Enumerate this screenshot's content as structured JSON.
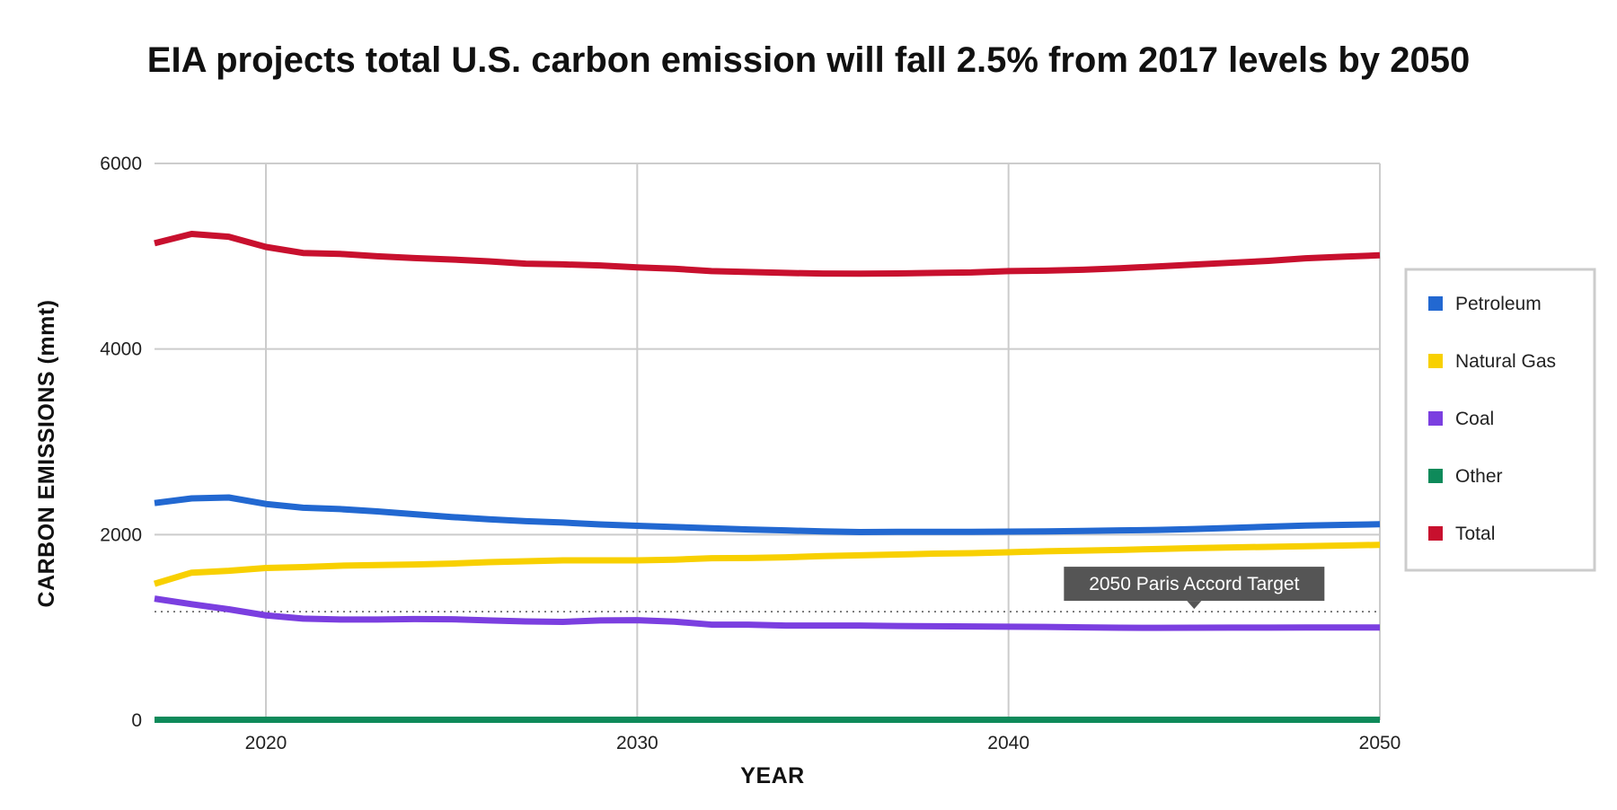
{
  "chart_data": {
    "type": "line",
    "title": "EIA projects total U.S. carbon emission will fall 2.5% from 2017 levels by 2050",
    "xlabel": "YEAR",
    "ylabel": "CARBON EMISSIONS (mmt)",
    "xlim": [
      2017,
      2050
    ],
    "ylim": [
      0,
      6000
    ],
    "x_ticks": [
      "2020",
      "2030",
      "2040",
      "2050"
    ],
    "y_ticks": [
      "0",
      "2000",
      "4000",
      "6000"
    ],
    "grid": true,
    "legend_position": "right",
    "x": [
      2017,
      2018,
      2019,
      2020,
      2021,
      2022,
      2023,
      2024,
      2025,
      2026,
      2027,
      2028,
      2029,
      2030,
      2031,
      2032,
      2033,
      2034,
      2035,
      2036,
      2037,
      2038,
      2039,
      2040,
      2041,
      2042,
      2043,
      2044,
      2045,
      2046,
      2047,
      2048,
      2049,
      2050
    ],
    "series": [
      {
        "name": "Petroleum",
        "color": "#2268d1",
        "values": [
          2340,
          2390,
          2400,
          2330,
          2290,
          2275,
          2250,
          2220,
          2190,
          2165,
          2145,
          2130,
          2110,
          2095,
          2082,
          2068,
          2055,
          2045,
          2035,
          2028,
          2030,
          2030,
          2030,
          2032,
          2035,
          2040,
          2045,
          2050,
          2060,
          2072,
          2085,
          2098,
          2105,
          2112
        ]
      },
      {
        "name": "Natural Gas",
        "color": "#f8d000",
        "values": [
          1470,
          1590,
          1610,
          1640,
          1650,
          1665,
          1672,
          1678,
          1688,
          1703,
          1713,
          1722,
          1722,
          1722,
          1730,
          1745,
          1748,
          1755,
          1768,
          1777,
          1785,
          1795,
          1800,
          1810,
          1820,
          1828,
          1835,
          1845,
          1855,
          1862,
          1868,
          1875,
          1882,
          1890
        ]
      },
      {
        "name": "Coal",
        "color": "#7b3fe0",
        "values": [
          1310,
          1250,
          1195,
          1130,
          1095,
          1085,
          1085,
          1090,
          1088,
          1075,
          1065,
          1060,
          1075,
          1078,
          1062,
          1030,
          1030,
          1020,
          1020,
          1020,
          1015,
          1013,
          1010,
          1008,
          1005,
          1000,
          997,
          995,
          997,
          998,
          998,
          999,
          999,
          999
        ]
      },
      {
        "name": "Other",
        "color": "#0e8a5a",
        "values": [
          5,
          5,
          5,
          5,
          5,
          5,
          5,
          5,
          5,
          5,
          5,
          5,
          5,
          5,
          5,
          5,
          5,
          5,
          5,
          5,
          5,
          5,
          5,
          5,
          5,
          5,
          5,
          5,
          5,
          5,
          5,
          5,
          5,
          5
        ]
      },
      {
        "name": "Total",
        "color": "#c8102e",
        "values": [
          5140,
          5240,
          5210,
          5100,
          5035,
          5025,
          5000,
          4980,
          4965,
          4945,
          4920,
          4912,
          4900,
          4880,
          4865,
          4840,
          4830,
          4820,
          4813,
          4812,
          4815,
          4820,
          4825,
          4840,
          4845,
          4855,
          4870,
          4890,
          4910,
          4930,
          4950,
          4978,
          4995,
          5010
        ]
      }
    ],
    "annotations": [
      {
        "text": "2050 Paris Accord Target",
        "y": 1170,
        "x": 2045,
        "style": "dotted-line"
      }
    ]
  },
  "colors": {
    "grid": "#cccccc",
    "annotation_bg": "#555555",
    "target_line": "#555555"
  }
}
